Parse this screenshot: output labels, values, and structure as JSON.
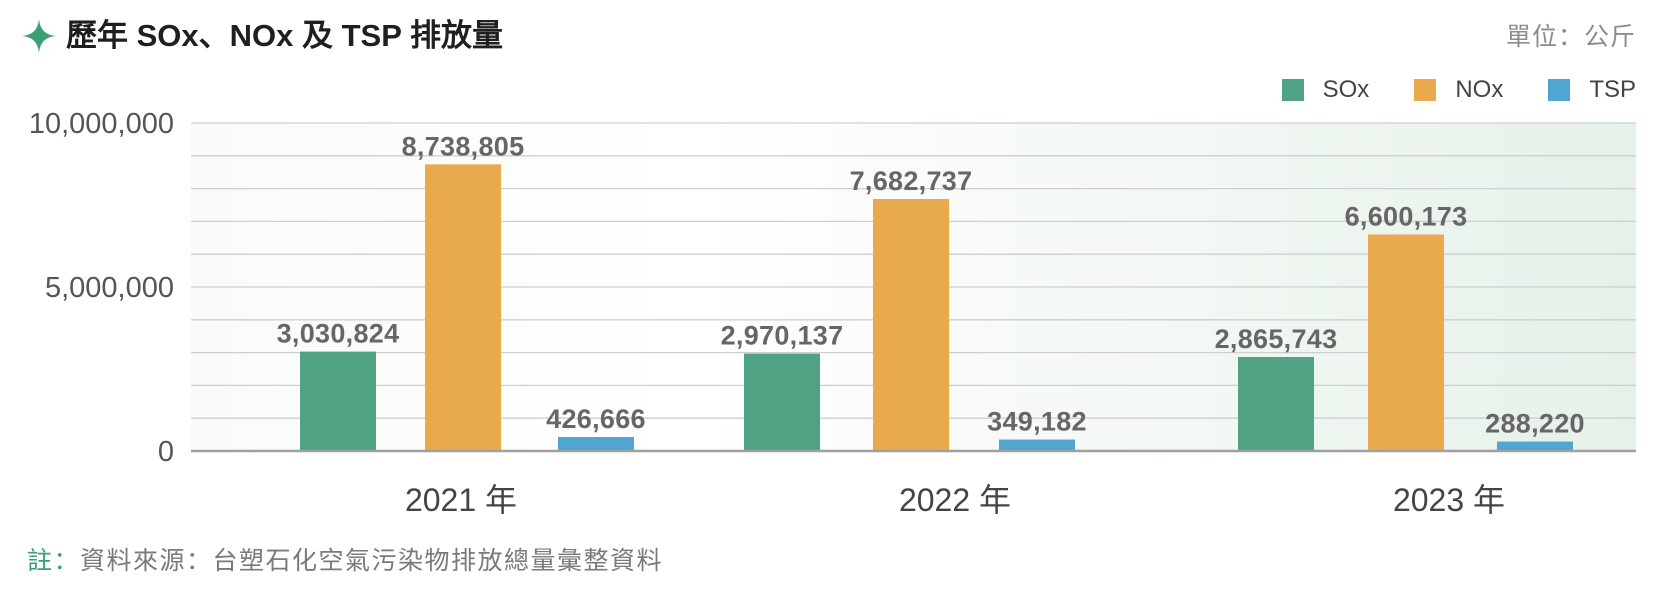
{
  "header": {
    "icon": "sparkle-icon"
  },
  "colors": {
    "accent": "#3a9f73",
    "title": "#1f1f1f",
    "muted": "#8c8c8c"
  },
  "chart_data": {
    "type": "bar",
    "title": "歷年 SOx、NOx 及 TSP 排放量",
    "unit_label": "單位：公斤",
    "categories": [
      "2021 年",
      "2022 年",
      "2023 年"
    ],
    "series": [
      {
        "name": "SOx",
        "color": "#4fa383",
        "values": [
          3030824,
          2970137,
          2865743
        ],
        "labels": [
          "3,030,824",
          "2,970,137",
          "2,865,743"
        ]
      },
      {
        "name": "NOx",
        "color": "#e8aa4c",
        "values": [
          8738805,
          7682737,
          6600173
        ],
        "labels": [
          "8,738,805",
          "7,682,737",
          "6,600,173"
        ]
      },
      {
        "name": "TSP",
        "color": "#50a6d0",
        "values": [
          426666,
          349182,
          288220
        ],
        "labels": [
          "426,666",
          "349,182",
          "288,220"
        ]
      }
    ],
    "ylim": [
      0,
      10000000
    ],
    "yticks": [
      {
        "value": 0,
        "label": "0"
      },
      {
        "value": 5000000,
        "label": "5,000,000"
      },
      {
        "value": 10000000,
        "label": "10,000,000"
      }
    ],
    "grid": true,
    "grid_step": 1000000,
    "legend": "top-right"
  },
  "footer": {
    "note_label": "註：",
    "note_text": "資料來源：台塑石化空氣污染物排放總量彙整資料"
  }
}
